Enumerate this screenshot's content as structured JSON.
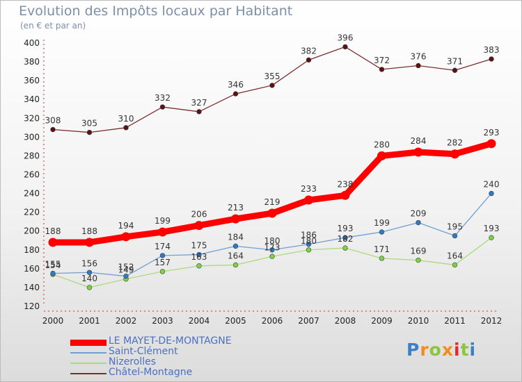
{
  "header": {
    "title": "Evolution des Impôts locaux par Habitant",
    "subtitle": "(en € et par an)"
  },
  "logo": {
    "text": "Proxiti",
    "colors": [
      "#3d7fc4",
      "#f28c1e",
      "#8cc43f",
      "#f28c1e",
      "#e02b2b",
      "#8cc43f",
      "#3d7fc4"
    ]
  },
  "chart_data": {
    "type": "line",
    "x": [
      2000,
      2001,
      2002,
      2003,
      2004,
      2005,
      2006,
      2007,
      2008,
      2009,
      2010,
      2011,
      2012
    ],
    "ylim": [
      120,
      400
    ],
    "yticks": [
      120,
      140,
      160,
      180,
      200,
      220,
      240,
      260,
      280,
      300,
      320,
      340,
      360,
      380,
      400
    ],
    "grid": false,
    "legend_position": "bottom-left",
    "series": [
      {
        "name": "LE MAYET-DE-MONTAGNE",
        "color": "#ff0000",
        "point_color": "#ff0000",
        "values": [
          188,
          188,
          194,
          199,
          206,
          213,
          219,
          233,
          238,
          280,
          284,
          282,
          293
        ]
      },
      {
        "name": "Saint-Clément",
        "color": "#6f9fd1",
        "point_color": "#2f78c4",
        "values": [
          155,
          156,
          152,
          174,
          175,
          184,
          180,
          186,
          193,
          199,
          209,
          195,
          240
        ]
      },
      {
        "name": "Nizerolles",
        "color": "#a9dc7c",
        "point_color": "#7dd142",
        "values": [
          154,
          140,
          149,
          157,
          163,
          164,
          173,
          180,
          182,
          171,
          169,
          164,
          193
        ]
      },
      {
        "name": "Châtel-Montagne",
        "color": "#7a2e2e",
        "point_color": "#5a1212",
        "values": [
          308,
          305,
          310,
          332,
          327,
          346,
          355,
          382,
          396,
          372,
          376,
          371,
          383
        ]
      }
    ]
  }
}
